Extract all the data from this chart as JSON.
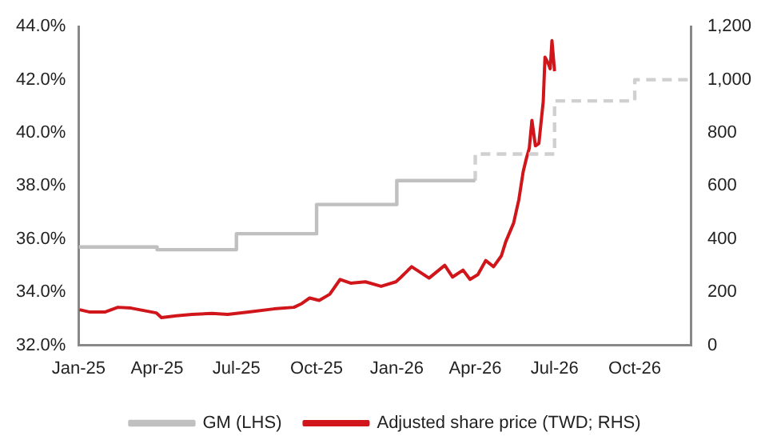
{
  "chart_data": {
    "type": "line",
    "legend": "bottom",
    "grid": false,
    "xlim": [
      "2025-01-01",
      "2026-12-05"
    ],
    "xticks": [
      {
        "value": "2025-01-01",
        "label": "Jan-25"
      },
      {
        "value": "2025-04-01",
        "label": "Apr-25"
      },
      {
        "value": "2025-07-01",
        "label": "Jul-25"
      },
      {
        "value": "2025-10-01",
        "label": "Oct-25"
      },
      {
        "value": "2026-01-01",
        "label": "Jan-26"
      },
      {
        "value": "2026-04-01",
        "label": "Apr-26"
      },
      {
        "value": "2026-07-01",
        "label": "Jul-26"
      },
      {
        "value": "2026-10-01",
        "label": "Oct-26"
      }
    ],
    "ylim": [
      32,
      44
    ],
    "yticks": [
      {
        "value": 32,
        "label": "32.0%"
      },
      {
        "value": 34,
        "label": "34.0%"
      },
      {
        "value": 36,
        "label": "36.0%"
      },
      {
        "value": 38,
        "label": "38.0%"
      },
      {
        "value": 40,
        "label": "40.0%"
      },
      {
        "value": 42,
        "label": "42.0%"
      },
      {
        "value": 44,
        "label": "44.0%"
      }
    ],
    "y2lim": [
      0,
      1200
    ],
    "y2ticks": [
      0,
      200,
      400,
      600,
      800,
      {
        "value": 1000,
        "label": "1,000"
      },
      {
        "value": 1200,
        "label": "1,200"
      }
    ],
    "series": [
      {
        "type": "step",
        "name": "GM (LHS)",
        "color": "#c0c0c0",
        "line_style": "solid",
        "x": [
          "2025-01-01",
          "2025-04-01",
          "2025-07-01",
          "2025-10-01",
          "2026-01-01",
          "2026-04-01"
        ],
        "values": [
          35.7,
          35.6,
          36.2,
          37.3,
          38.2,
          38.2
        ]
      },
      {
        "type": "step",
        "color": "#d0d0d0",
        "line_style": "dashed",
        "x": [
          "2026-04-01",
          "2026-04-01",
          "2026-07-01",
          "2026-10-01",
          "2026-12-05"
        ],
        "values": [
          38.2,
          39.2,
          41.2,
          42.0,
          42.0
        ]
      },
      {
        "type": "line",
        "name": "Adjusted share price (TWD; RHS)",
        "color": "#d0161b",
        "line_style": "solid",
        "axis": "y2",
        "x": [
          "2025-01-02",
          "2025-01-14",
          "2025-01-31",
          "2025-02-15",
          "2025-03-02",
          "2025-03-31",
          "2025-04-06",
          "2025-04-23",
          "2025-05-11",
          "2025-06-03",
          "2025-06-21",
          "2025-07-15",
          "2025-08-13",
          "2025-09-05",
          "2025-09-14",
          "2025-09-23",
          "2025-10-04",
          "2025-10-16",
          "2025-10-28",
          "2025-11-09",
          "2025-11-26",
          "2025-12-14",
          "2025-12-31",
          "2026-01-06",
          "2026-01-18",
          "2026-01-24",
          "2026-02-07",
          "2026-02-25",
          "2026-03-06",
          "2026-03-18",
          "2026-03-26",
          "2026-04-04",
          "2026-04-13",
          "2026-04-22",
          "2026-05-01",
          "2026-05-06",
          "2026-05-15",
          "2026-05-21",
          "2026-05-26",
          "2026-05-30",
          "2026-06-02",
          "2026-06-05",
          "2026-06-09",
          "2026-06-13",
          "2026-06-18",
          "2026-06-20",
          "2026-06-24",
          "2026-06-26",
          "2026-06-28",
          "2026-07-01"
        ],
        "values": [
          134,
          125,
          125,
          143,
          140,
          122,
          104,
          111,
          116,
          120,
          116,
          125,
          137,
          143,
          157,
          178,
          169,
          192,
          248,
          234,
          239,
          222,
          239,
          257,
          296,
          283,
          253,
          301,
          257,
          283,
          248,
          266,
          319,
          296,
          337,
          390,
          460,
          548,
          654,
          708,
          742,
          847,
          751,
          760,
          918,
          1085,
          1059,
          1041,
          1147,
          1032
        ]
      }
    ]
  }
}
